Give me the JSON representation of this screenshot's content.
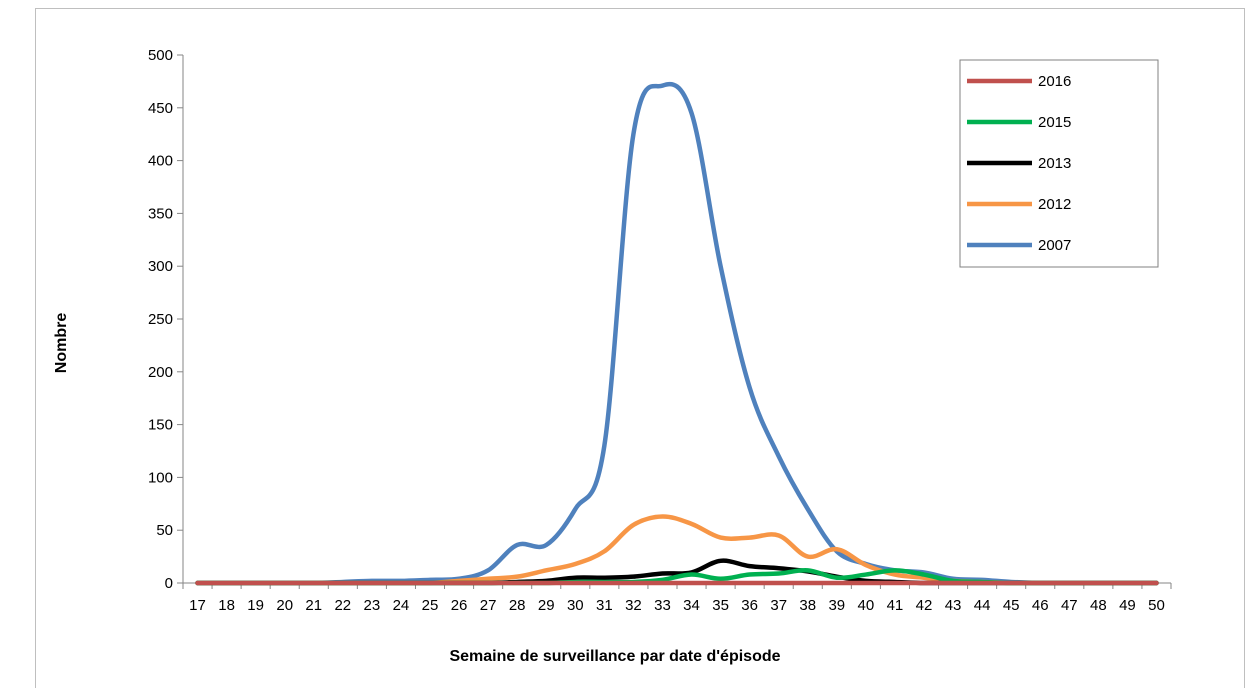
{
  "chart_data": {
    "type": "line",
    "title": "",
    "xlabel": "Semaine de surveillance par date d'épisode",
    "ylabel": "Nombre",
    "ylim": [
      0,
      500
    ],
    "yticks": [
      0,
      50,
      100,
      150,
      200,
      250,
      300,
      350,
      400,
      450,
      500
    ],
    "grid": false,
    "legend_position": "top-right",
    "categories": [
      "17",
      "18",
      "19",
      "20",
      "21",
      "22",
      "23",
      "24",
      "25",
      "26",
      "27",
      "28",
      "29",
      "30",
      "31",
      "32",
      "33",
      "34",
      "35",
      "36",
      "37",
      "38",
      "39",
      "40",
      "41",
      "42",
      "43",
      "44",
      "45",
      "46",
      "47",
      "48",
      "49",
      "50"
    ],
    "series": [
      {
        "name": "2016",
        "color": "#c0504d",
        "values": [
          0,
          0,
          0,
          0,
          0,
          0,
          0,
          0,
          0,
          0,
          0,
          0,
          0,
          0,
          0,
          0,
          0,
          0,
          0,
          0,
          0,
          0,
          0,
          0,
          0,
          0,
          0,
          0,
          0,
          0,
          0,
          0,
          0,
          0
        ]
      },
      {
        "name": "2015",
        "color": "#00b050",
        "values": [
          0,
          0,
          0,
          0,
          0,
          0,
          0,
          0,
          0,
          0,
          0,
          0,
          0,
          1,
          1,
          1,
          3,
          8,
          4,
          8,
          9,
          12,
          5,
          8,
          12,
          8,
          2,
          1,
          0,
          0,
          0,
          0,
          0,
          0
        ]
      },
      {
        "name": "2013",
        "color": "#000000",
        "values": [
          0,
          0,
          0,
          0,
          0,
          0,
          0,
          0,
          0,
          0,
          0,
          1,
          2,
          5,
          5,
          6,
          9,
          10,
          21,
          16,
          14,
          11,
          6,
          2,
          1,
          0,
          0,
          0,
          0,
          0,
          0,
          0,
          0,
          0
        ]
      },
      {
        "name": "2012",
        "color": "#f79646",
        "values": [
          0,
          0,
          0,
          0,
          0,
          0,
          0,
          0,
          0,
          2,
          4,
          6,
          12,
          18,
          30,
          55,
          63,
          56,
          43,
          43,
          45,
          25,
          32,
          17,
          8,
          5,
          2,
          1,
          0,
          0,
          0,
          0,
          0,
          0
        ]
      },
      {
        "name": "2007",
        "color": "#4f81bd",
        "values": [
          0,
          0,
          0,
          0,
          0,
          1,
          2,
          2,
          3,
          4,
          12,
          36,
          36,
          70,
          130,
          425,
          471,
          445,
          300,
          185,
          120,
          70,
          30,
          18,
          12,
          10,
          4,
          3,
          1,
          0,
          0,
          0,
          0,
          0
        ]
      }
    ],
    "legend_order": [
      "2016",
      "2015",
      "2013",
      "2012",
      "2007"
    ]
  }
}
